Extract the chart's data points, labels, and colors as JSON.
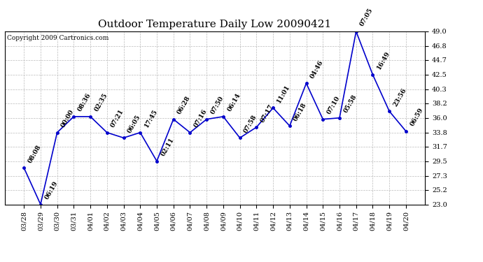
{
  "title": "Outdoor Temperature Daily Low 20090421",
  "copyright_text": "Copyright 2009 Cartronics.com",
  "x_labels": [
    "03/28",
    "03/29",
    "03/30",
    "03/31",
    "04/01",
    "04/02",
    "04/03",
    "04/04",
    "04/05",
    "04/06",
    "04/07",
    "04/08",
    "04/09",
    "04/10",
    "04/11",
    "04/12",
    "04/13",
    "04/14",
    "04/15",
    "04/16",
    "04/17",
    "04/18",
    "04/19",
    "04/20"
  ],
  "y_values": [
    28.5,
    23.0,
    33.8,
    36.2,
    36.2,
    33.8,
    33.0,
    33.8,
    29.5,
    35.8,
    33.8,
    35.8,
    36.2,
    33.0,
    34.6,
    37.5,
    34.8,
    41.2,
    35.8,
    36.0,
    49.0,
    42.5,
    37.0,
    34.0
  ],
  "point_labels": [
    "08:08",
    "06:19",
    "00:00",
    "08:36",
    "02:35",
    "07:21",
    "06:05",
    "17:45",
    "02:11",
    "06:28",
    "07:16",
    "07:50",
    "06:14",
    "07:58",
    "07:17",
    "11:01",
    "06:18",
    "04:46",
    "07:10",
    "05:58",
    "07:05",
    "16:49",
    "23:56",
    "06:59"
  ],
  "line_color": "#0000cc",
  "marker_color": "#0000cc",
  "background_color": "#ffffff",
  "grid_color": "#bbbbbb",
  "ylim": [
    23.0,
    49.0
  ],
  "yticks": [
    23.0,
    25.2,
    27.3,
    29.5,
    31.7,
    33.8,
    36.0,
    38.2,
    40.3,
    42.5,
    44.7,
    46.8,
    49.0
  ],
  "title_fontsize": 11,
  "tick_fontsize": 7,
  "point_label_fontsize": 6.5,
  "copyright_fontsize": 6.5
}
